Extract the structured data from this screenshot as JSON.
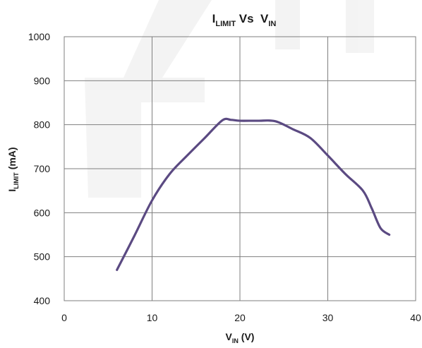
{
  "chart_data": {
    "type": "line",
    "title": {
      "main": "I",
      "sub": "LIMIT",
      "mid": " Vs  V",
      "sub2": "IN"
    },
    "xlabel": {
      "main": "V",
      "sub": "IN",
      "rest": " (V)"
    },
    "ylabel": {
      "main": "I",
      "sub": "LIMIT",
      "rest": " (mA)"
    },
    "xlim": [
      0,
      40
    ],
    "ylim": [
      400,
      1000
    ],
    "x_ticks": [
      0,
      10,
      20,
      30,
      40
    ],
    "y_ticks": [
      400,
      500,
      600,
      700,
      800,
      900,
      1000
    ],
    "grid": true,
    "colors": {
      "series": "#5b4a82",
      "grid": "#7f7f7f"
    },
    "series": [
      {
        "x": [
          6,
          8,
          10,
          12,
          14,
          16,
          18,
          19,
          20,
          22,
          24,
          26,
          28,
          30,
          32,
          34,
          35,
          36,
          37
        ],
        "y": [
          470,
          548,
          628,
          688,
          730,
          770,
          810,
          811,
          809,
          809,
          808,
          790,
          770,
          730,
          688,
          650,
          610,
          565,
          550
        ]
      }
    ]
  }
}
